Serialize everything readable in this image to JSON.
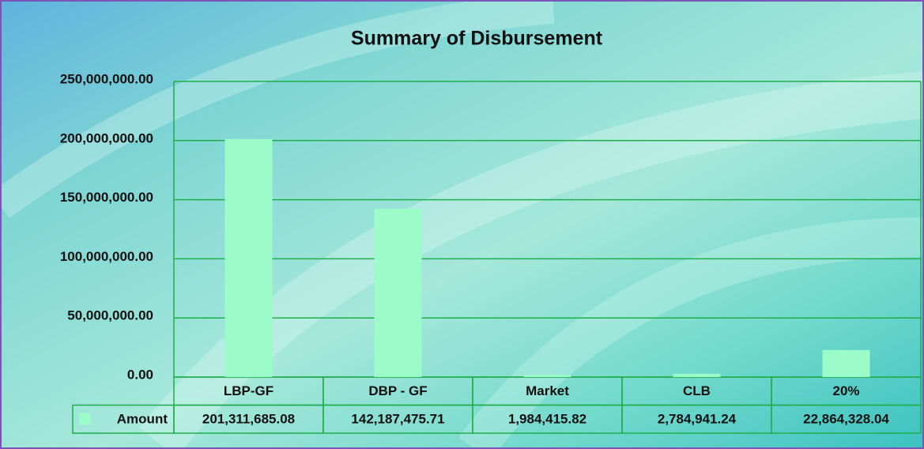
{
  "chart_data": {
    "type": "bar",
    "title": "Summary of Disbursement",
    "categories": [
      "LBP-GF",
      "DBP - GF",
      "Market",
      "CLB",
      "20%"
    ],
    "series": [
      {
        "name": "Amount",
        "color": "#9cfcc9",
        "values": [
          201311685.08,
          142187475.71,
          1984415.82,
          2784941.24,
          22864328.04
        ],
        "value_labels": [
          "201,311,685.08",
          "142,187,475.71",
          "1,984,415.82",
          "2,784,941.24",
          "22,864,328.04"
        ]
      }
    ],
    "ylim": [
      0,
      250000000
    ],
    "yticks": [
      {
        "value": 0,
        "label": "0.00"
      },
      {
        "value": 50000000,
        "label": "50,000,000.00"
      },
      {
        "value": 100000000,
        "label": "100,000,000.00"
      },
      {
        "value": 150000000,
        "label": "150,000,000.00"
      },
      {
        "value": 200000000,
        "label": "200,000,000.00"
      },
      {
        "value": 250000000,
        "label": "250,000,000.00"
      }
    ],
    "grid": true,
    "grid_color": "#1fae4a",
    "legend": "data-table"
  }
}
